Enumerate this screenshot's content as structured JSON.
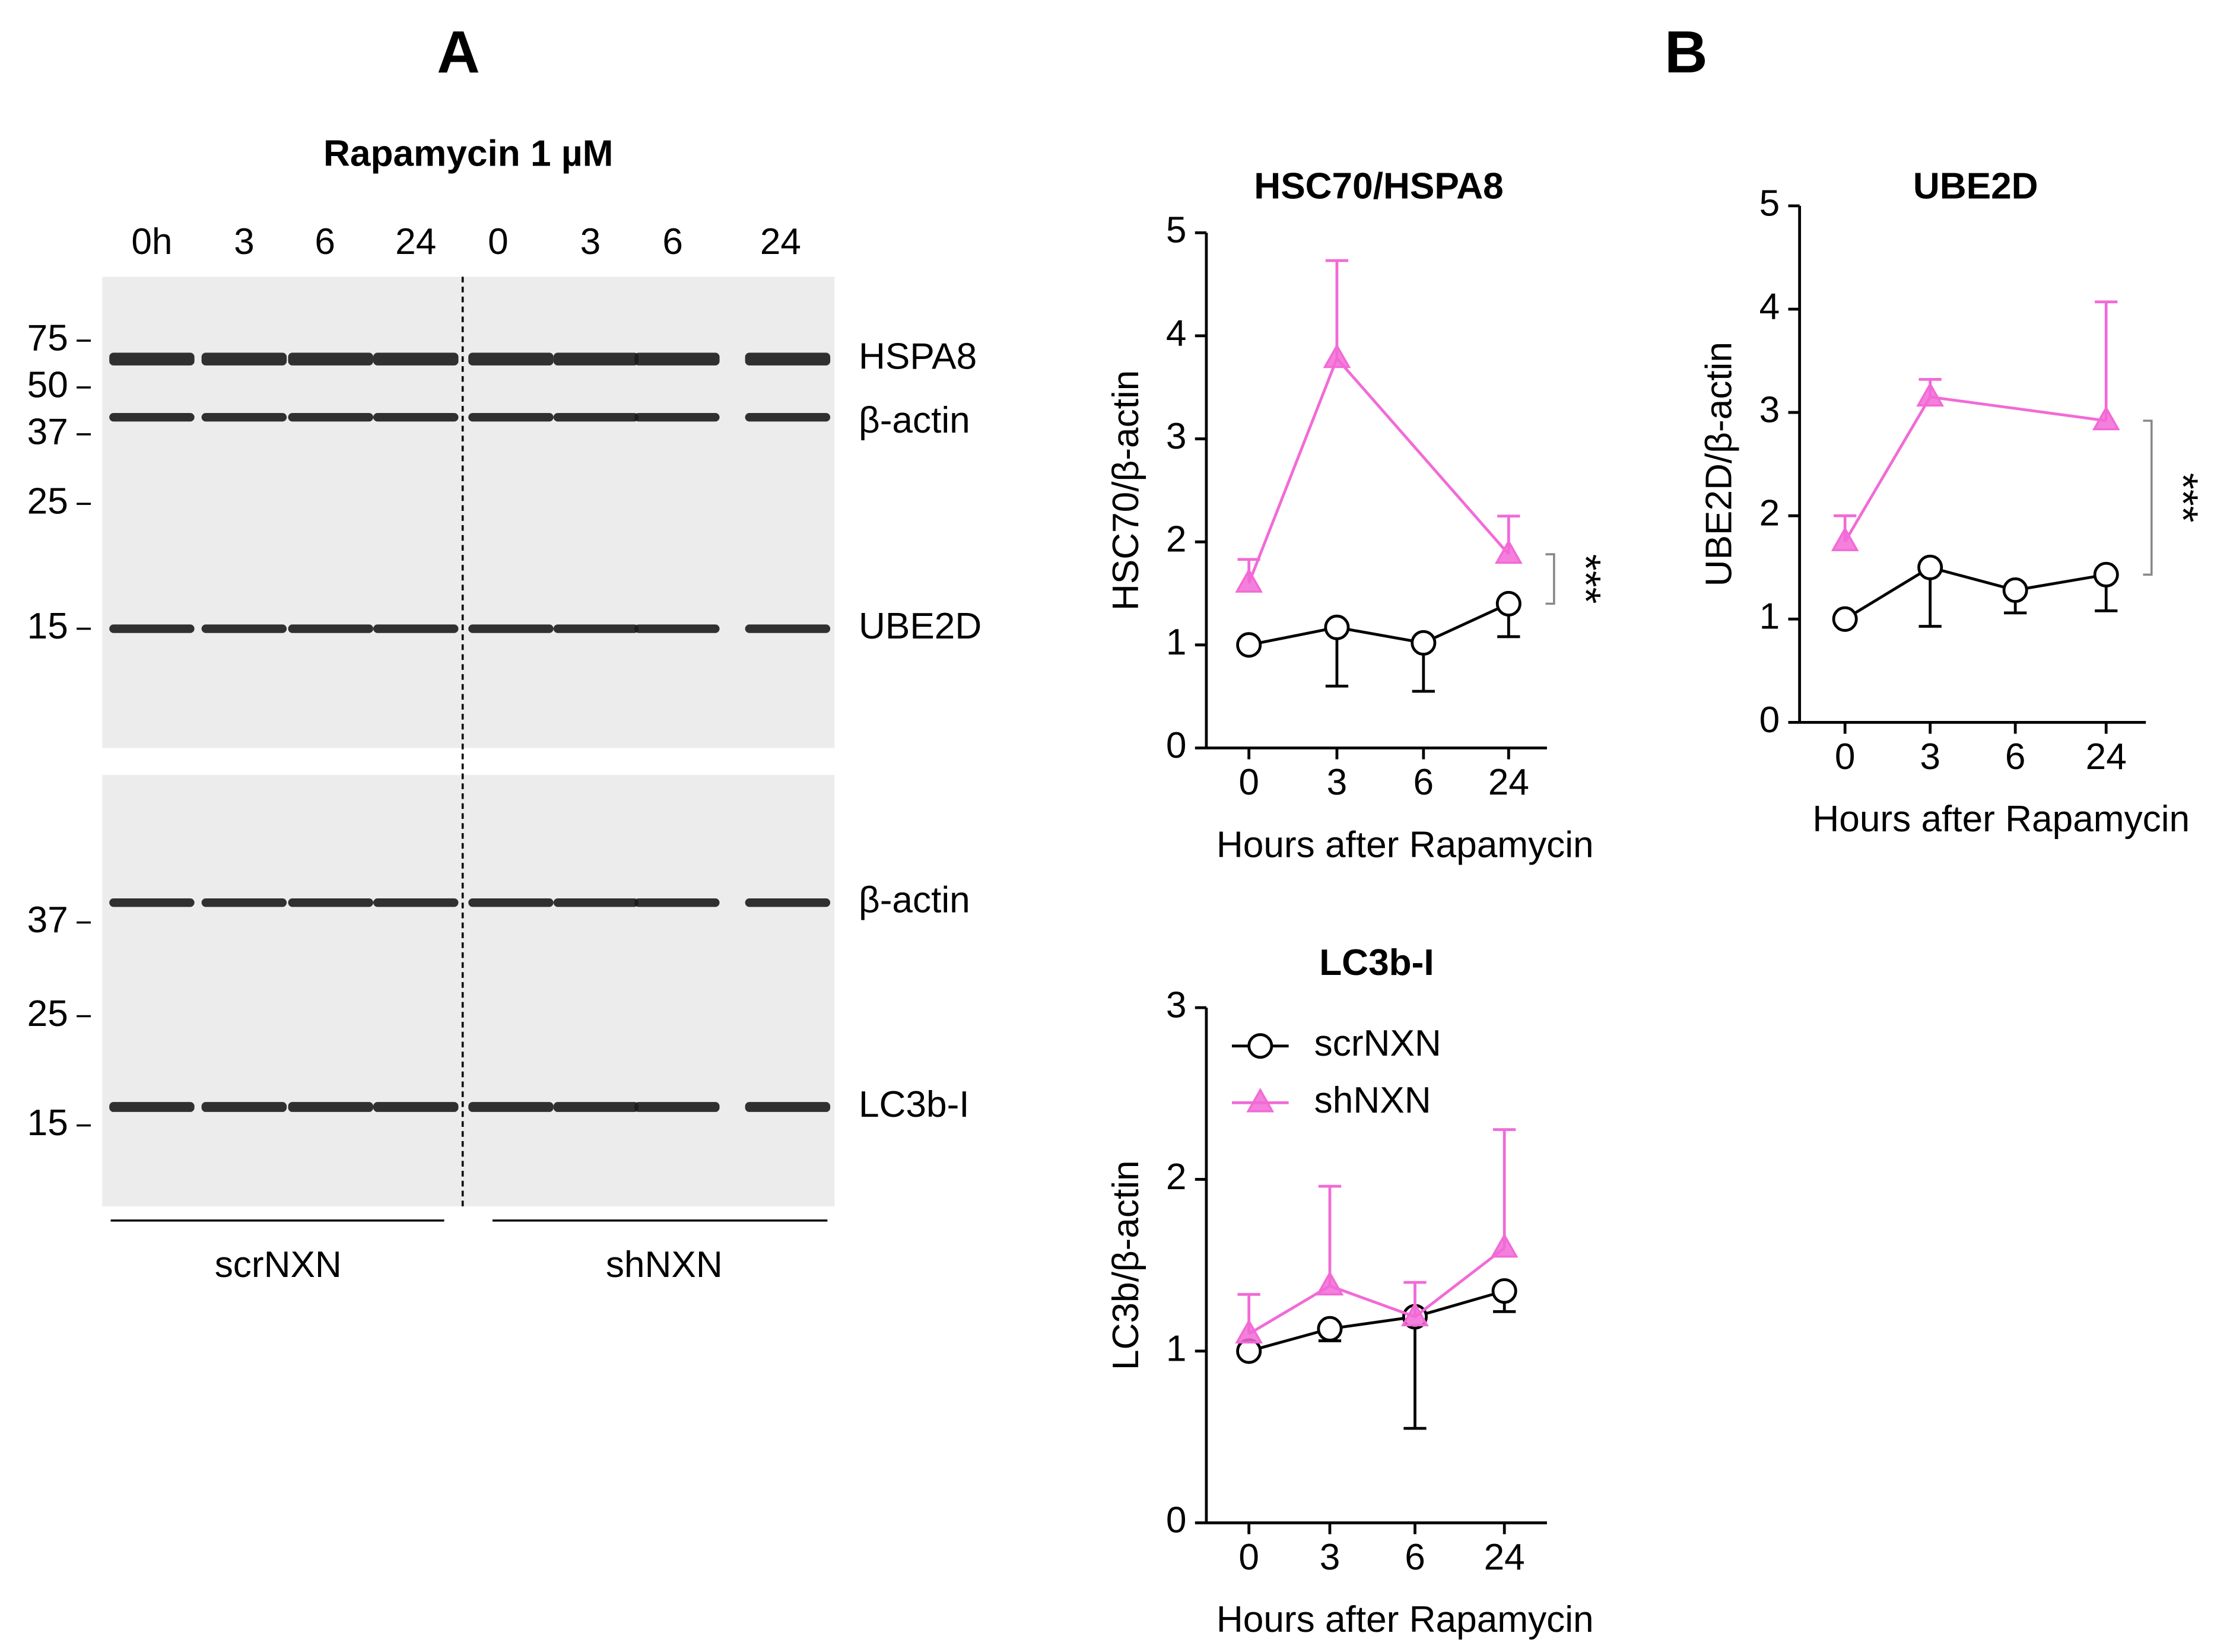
{
  "panel_labels": [
    "A",
    "B"
  ],
  "blot": {
    "title": "Rapamycin 1 µM",
    "lanes": [
      "0h",
      "3",
      "6",
      "24",
      "0",
      "3",
      "6",
      "24"
    ],
    "upper_markers": [
      "75",
      "50",
      "37",
      "25",
      "15"
    ],
    "upper_bands": [
      "HSPA8",
      "β-actin",
      "UBE2D"
    ],
    "lower_markers": [
      "37",
      "25",
      "15"
    ],
    "lower_bands": [
      "β-actin",
      "LC3b-I"
    ],
    "groups": [
      "scrNXN",
      "shNXN"
    ]
  },
  "chart_data": [
    {
      "type": "line",
      "title": "HSC70/HSPA8",
      "categories": [
        "0",
        "3",
        "6",
        "24"
      ],
      "xlabel": "Hours after Rapamycin",
      "ylabel": "HSC70/β-actin",
      "ylim": [
        0,
        5
      ],
      "yticks": [
        0,
        1,
        2,
        3,
        4,
        5
      ],
      "legend": false,
      "annotation": "***",
      "series": [
        {
          "name": "scrNXN",
          "color": "#000000",
          "marker": "circle",
          "error_direction": "down",
          "x": [
            "0",
            "3",
            "6",
            "24"
          ],
          "values": [
            1.0,
            1.17,
            1.02,
            1.4
          ],
          "errors": [
            0,
            0.57,
            0.47,
            0.32
          ]
        },
        {
          "name": "shNXN",
          "color": "#f26ad6",
          "marker": "triangle",
          "error_direction": "up",
          "x": [
            "0",
            "3",
            "24"
          ],
          "values": [
            1.6,
            3.78,
            1.88
          ],
          "errors": [
            0.23,
            0.95,
            0.37
          ]
        }
      ]
    },
    {
      "type": "line",
      "title": "UBE2D",
      "categories": [
        "0",
        "3",
        "6",
        "24"
      ],
      "xlabel": "Hours after Rapamycin",
      "ylabel": "UBE2D/β-actin",
      "ylim": [
        0,
        5
      ],
      "yticks": [
        0,
        1,
        2,
        3,
        4,
        5
      ],
      "legend": false,
      "annotation": "***",
      "series": [
        {
          "name": "scrNXN",
          "color": "#000000",
          "marker": "circle",
          "error_direction": "down",
          "x": [
            "0",
            "3",
            "6",
            "24"
          ],
          "values": [
            1.0,
            1.5,
            1.28,
            1.43
          ],
          "errors": [
            0,
            0.57,
            0.22,
            0.35
          ]
        },
        {
          "name": "shNXN",
          "color": "#f26ad6",
          "marker": "triangle",
          "error_direction": "up",
          "x": [
            "0",
            "3",
            "24"
          ],
          "values": [
            1.75,
            3.15,
            2.92
          ],
          "errors": [
            0.25,
            0.17,
            1.15
          ]
        }
      ]
    },
    {
      "type": "line",
      "title": "LC3b-I",
      "categories": [
        "0",
        "3",
        "6",
        "24"
      ],
      "xlabel": "Hours after Rapamycin",
      "ylabel": "LC3b/β-actin",
      "ylim": [
        0,
        3
      ],
      "yticks": [
        0,
        1,
        2,
        3
      ],
      "legend": "upper-left",
      "series": [
        {
          "name": "scrNXN",
          "color": "#000000",
          "marker": "circle",
          "error_direction": "down",
          "x": [
            "0",
            "3",
            "6",
            "24"
          ],
          "values": [
            1.0,
            1.13,
            1.2,
            1.35
          ],
          "errors": [
            0,
            0.07,
            0.65,
            0.12
          ]
        },
        {
          "name": "shNXN",
          "color": "#f26ad6",
          "marker": "triangle",
          "error_direction": "up",
          "x": [
            "0",
            "3",
            "6",
            "24"
          ],
          "values": [
            1.1,
            1.38,
            1.2,
            1.6
          ],
          "errors": [
            0.23,
            0.58,
            0.2,
            0.69
          ]
        }
      ]
    }
  ]
}
